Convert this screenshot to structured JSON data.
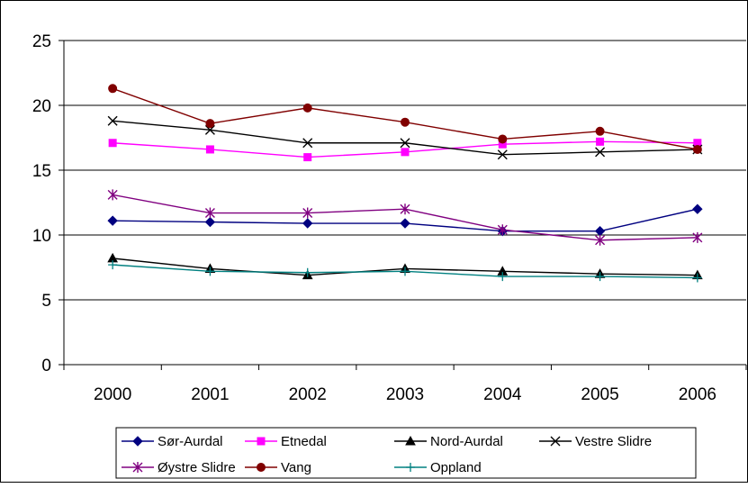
{
  "chart_data": {
    "type": "line",
    "categories": [
      "2000",
      "2001",
      "2002",
      "2003",
      "2004",
      "2005",
      "2006"
    ],
    "ylim": [
      0,
      25
    ],
    "yticks": [
      "0",
      "5",
      "10",
      "15",
      "20",
      "25"
    ],
    "grid": "horizontal",
    "legend_position": "bottom",
    "series": [
      {
        "name": "Sør-Aurdal",
        "color": "#000080",
        "marker": "diamond",
        "values": [
          11.1,
          11.0,
          10.9,
          10.9,
          10.3,
          10.3,
          12.0
        ]
      },
      {
        "name": "Etnedal",
        "color": "#FF00FF",
        "marker": "square",
        "values": [
          17.1,
          16.6,
          16.0,
          16.4,
          17.0,
          17.2,
          17.1
        ]
      },
      {
        "name": "Nord-Aurdal",
        "color": "#000000",
        "marker": "triangle",
        "values": [
          8.2,
          7.4,
          6.9,
          7.4,
          7.2,
          7.0,
          6.9
        ]
      },
      {
        "name": "Vestre Slidre",
        "color": "#000000",
        "marker": "x",
        "values": [
          18.8,
          18.1,
          17.1,
          17.1,
          16.2,
          16.4,
          16.6
        ]
      },
      {
        "name": "Øystre Slidre",
        "color": "#800080",
        "marker": "star",
        "values": [
          13.1,
          11.7,
          11.7,
          12.0,
          10.4,
          9.6,
          9.8
        ]
      },
      {
        "name": "Vang",
        "color": "#800000",
        "marker": "circle",
        "values": [
          21.3,
          18.6,
          19.8,
          18.7,
          17.4,
          18.0,
          16.6
        ]
      },
      {
        "name": "Oppland",
        "color": "#008080",
        "marker": "plus",
        "values": [
          7.7,
          7.2,
          7.1,
          7.2,
          6.8,
          6.8,
          6.7
        ]
      }
    ]
  }
}
